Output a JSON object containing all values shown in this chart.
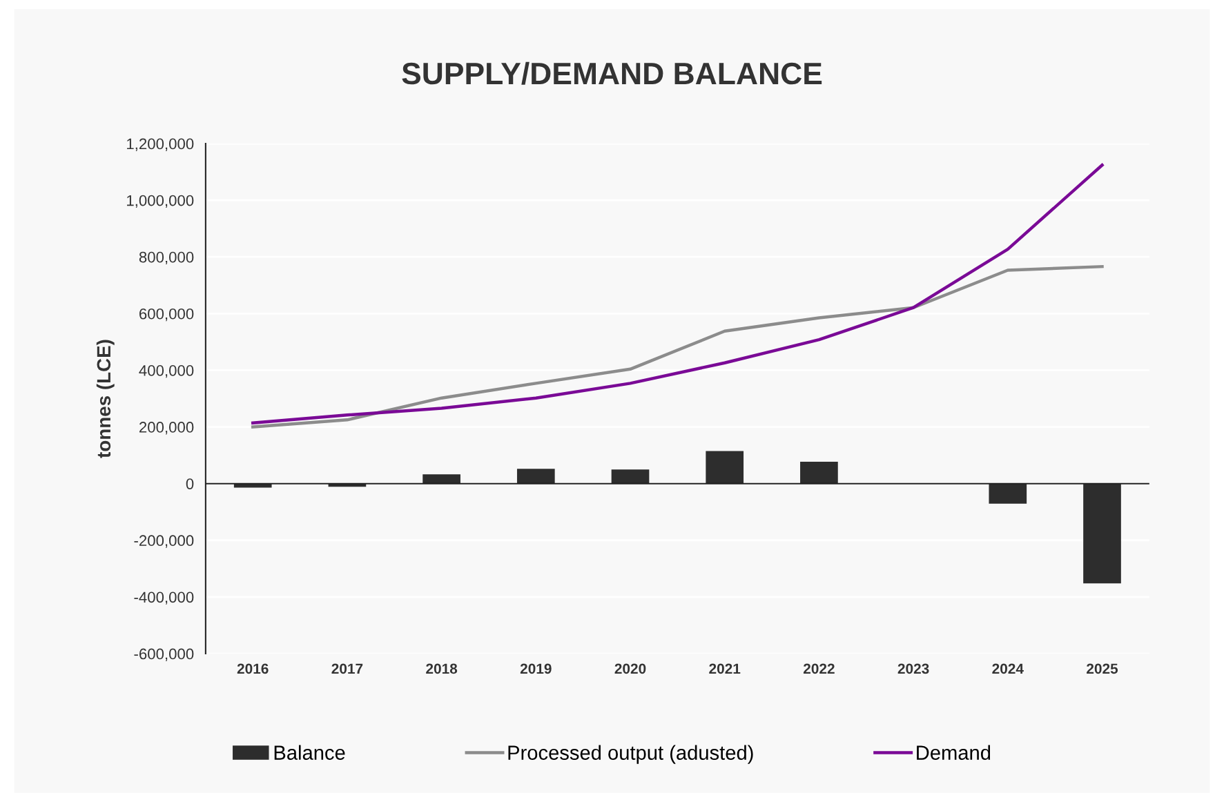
{
  "chart_data": {
    "type": "bar",
    "title": "SUPPLY/DEMAND BALANCE",
    "ylabel": "tonnes (LCE)",
    "categories": [
      "2016",
      "2017",
      "2018",
      "2019",
      "2020",
      "2021",
      "2022",
      "2023",
      "2024",
      "2025"
    ],
    "series": [
      {
        "name": "Balance",
        "color": "#2d2d2d",
        "values": [
          -14000,
          -11000,
          33000,
          52000,
          50000,
          115000,
          77000,
          0,
          -71000,
          -352000
        ]
      },
      {
        "name": "Processed output (adusted)",
        "type": "line",
        "color": "#8c8c8c",
        "values": [
          200000,
          225000,
          302000,
          354000,
          404000,
          538000,
          585000,
          621000,
          753000,
          766000
        ]
      },
      {
        "name": "Demand",
        "type": "line",
        "color": "#7a0a96",
        "values": [
          214000,
          242000,
          266000,
          302000,
          354000,
          426000,
          508000,
          621000,
          827000,
          1124000
        ]
      }
    ],
    "ylim": [
      -600000,
      1200000
    ],
    "yticks": [
      {
        "value": -600000,
        "label": "-600,000"
      },
      {
        "value": -400000,
        "label": "-400,000"
      },
      {
        "value": -200000,
        "label": "-200,000"
      },
      0,
      {
        "value": 200000,
        "label": "200,000"
      },
      {
        "value": 400000,
        "label": "400,000"
      },
      {
        "value": 600000,
        "label": "600,000"
      },
      {
        "value": 800000,
        "label": "800,000"
      },
      {
        "value": 1000000,
        "label": "1,000,000"
      },
      {
        "value": 1200000,
        "label": "1,200,000"
      }
    ],
    "grid": "y",
    "legend": "bottom",
    "marker": "none",
    "line_style": "solid"
  }
}
